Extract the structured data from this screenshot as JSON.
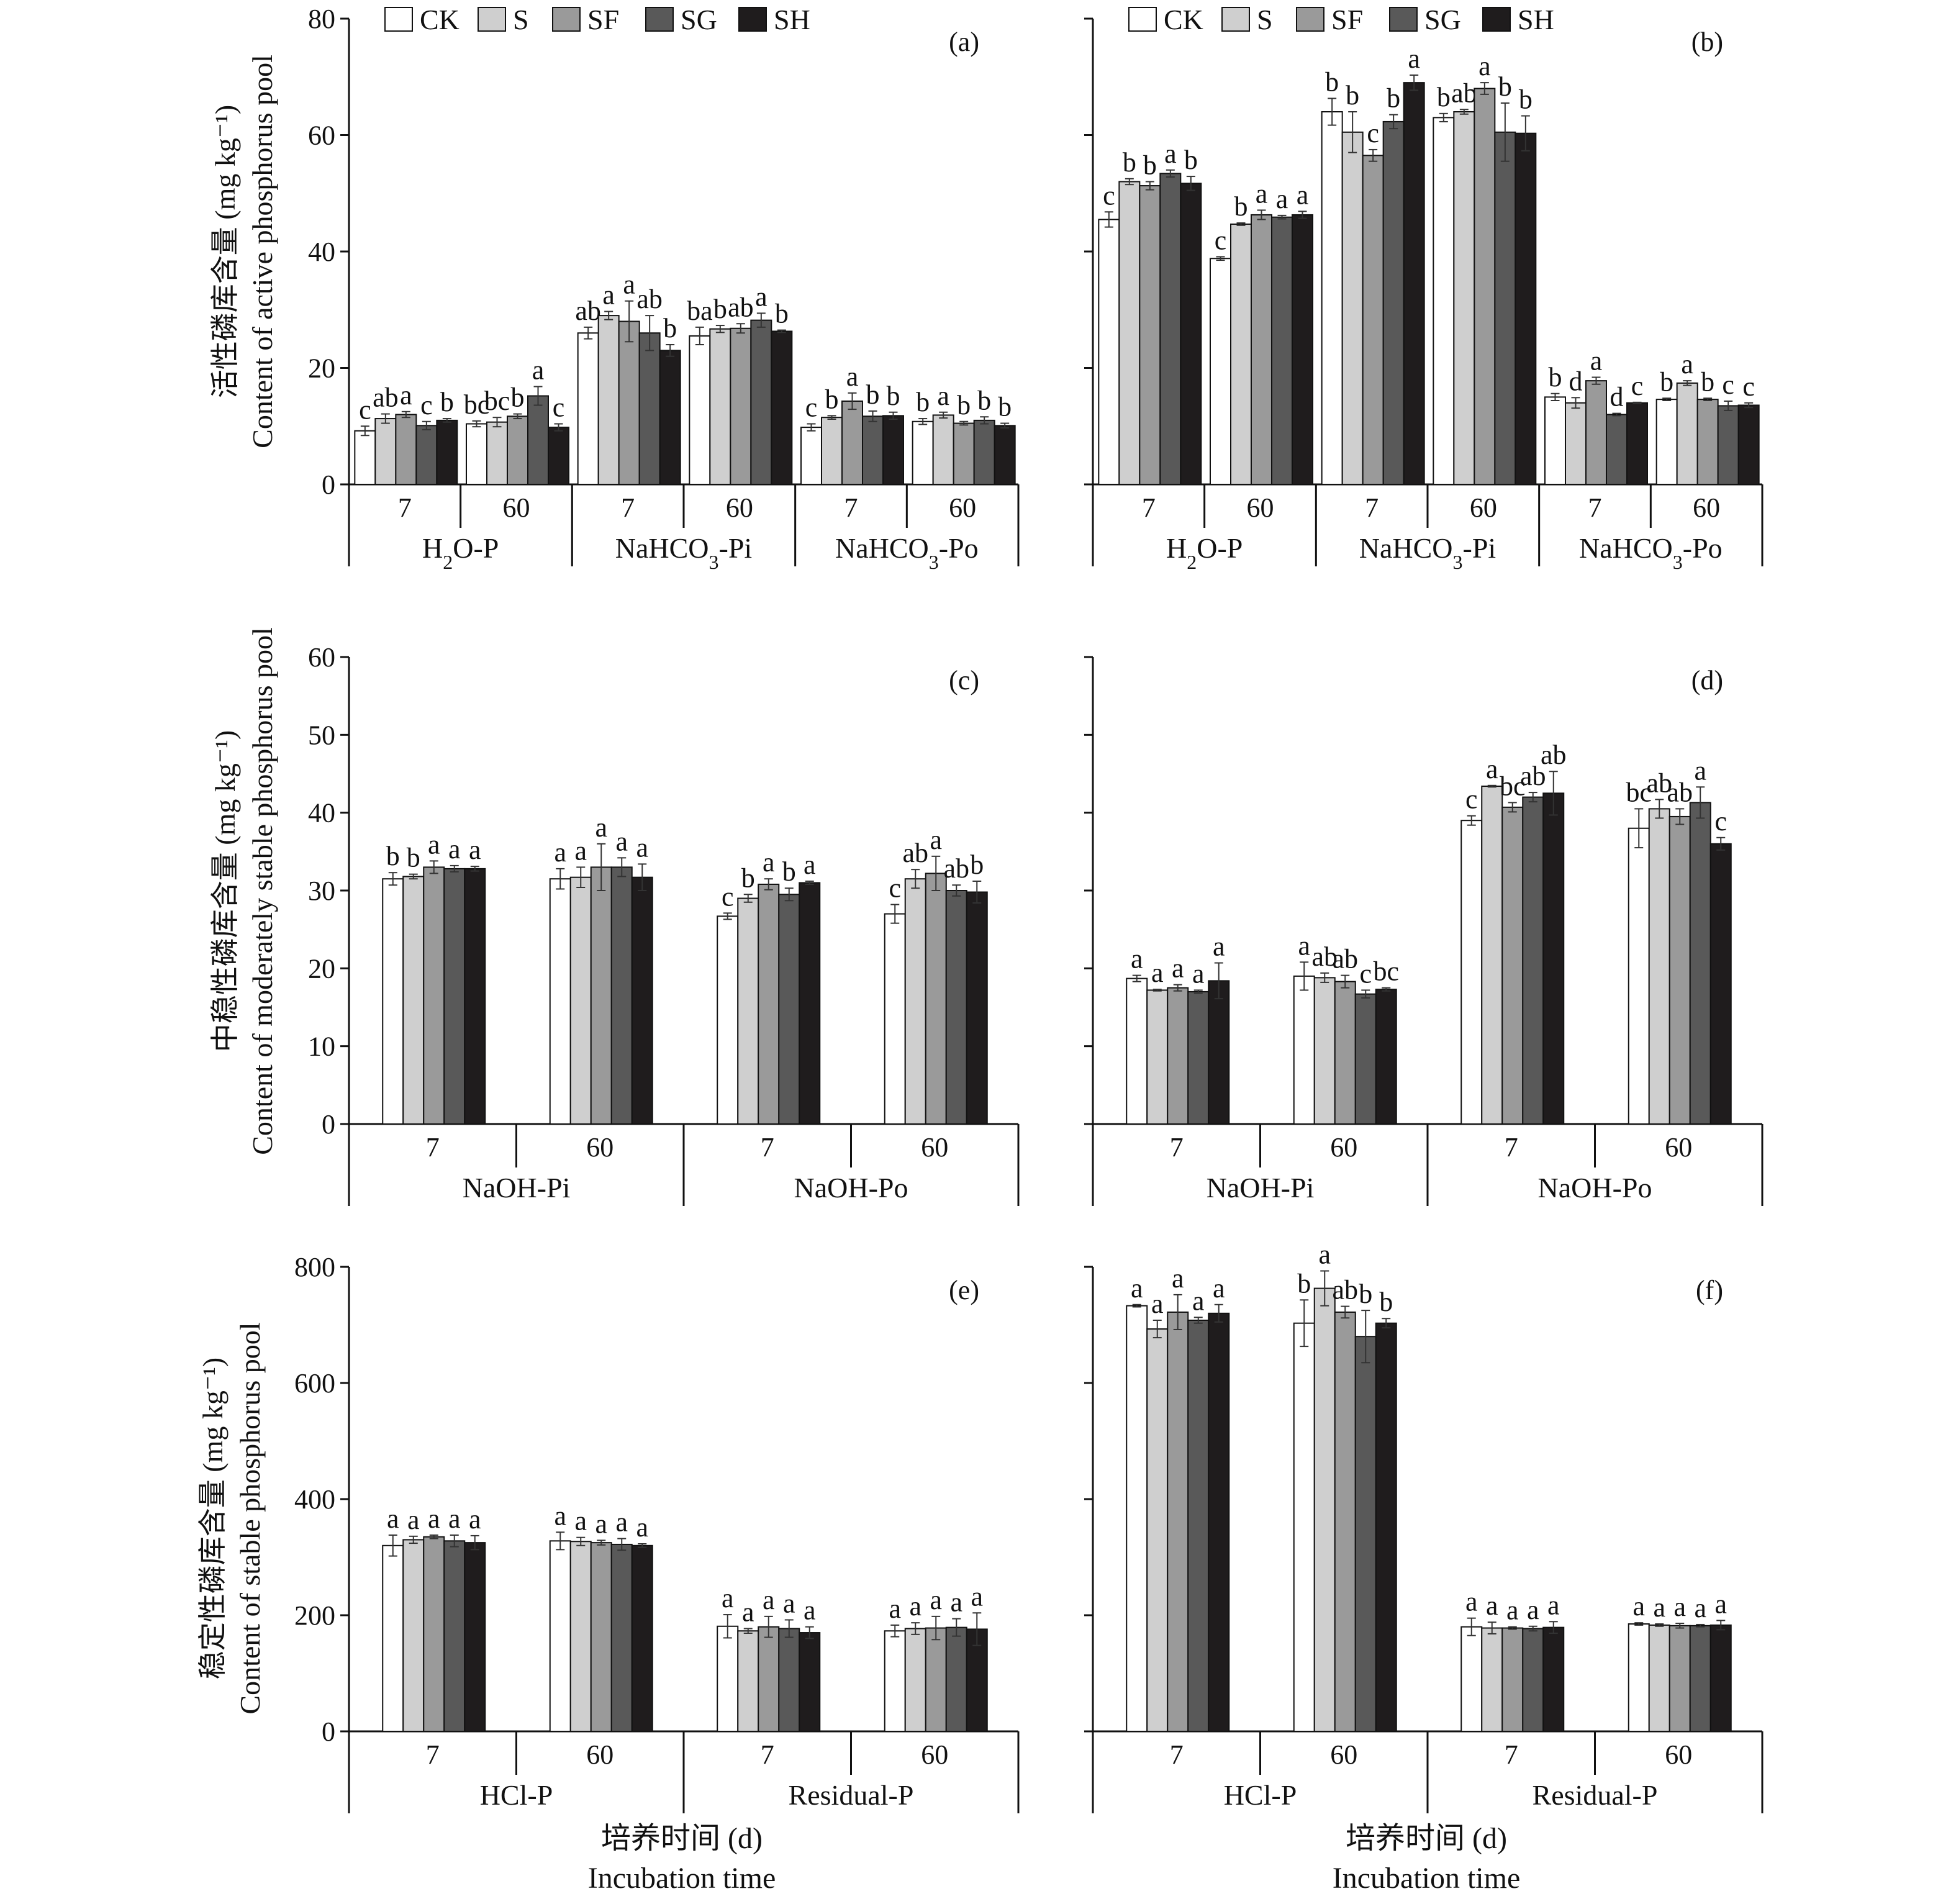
{
  "legend": {
    "items": [
      "CK",
      "S",
      "SF",
      "SG",
      "SH"
    ]
  },
  "colors": {
    "CK": "#ffffff",
    "S": "#cfcfcf",
    "SF": "#9a9a9a",
    "SG": "#595959",
    "SH": "#1f1c1d"
  },
  "row_ylabels": [
    {
      "cn": "活性磷库含量 (mg kg⁻¹)",
      "en": "Content of active phosphorus pool"
    },
    {
      "cn": "中稳性磷库含量 (mg kg⁻¹)",
      "en": "Content of moderately stable phosphorus pool"
    },
    {
      "cn": "稳定性磷库含量 (mg kg⁻¹)",
      "en": "Content of stable phosphorus pool"
    }
  ],
  "xlabel": {
    "cn": "培养时间 (d)",
    "en": "Incubation time"
  },
  "chart_data": [
    {
      "id": "a",
      "label": "(a)",
      "type": "bar",
      "ylim": [
        0,
        80
      ],
      "yticks": [
        0,
        20,
        40,
        60,
        80
      ],
      "show_tick_labels": true,
      "legend": true,
      "groups": [
        {
          "name": "H2O-P",
          "sub": "2",
          "days": [
            {
              "day": "7",
              "values": [
                9.2,
                11.3,
                12.0,
                10.1,
                11.0
              ],
              "err": [
                0.8,
                0.8,
                0.5,
                0.7,
                0.3
              ],
              "sig": [
                "c",
                "ab",
                "a",
                "c",
                "b"
              ]
            },
            {
              "day": "60",
              "values": [
                10.4,
                10.7,
                11.7,
                15.2,
                9.8
              ],
              "err": [
                0.5,
                0.8,
                0.4,
                1.6,
                0.6
              ],
              "sig": [
                "bc",
                "bc",
                "b",
                "a",
                "c"
              ]
            }
          ]
        },
        {
          "name": "NaHCO3-Pi",
          "sub": "3",
          "days": [
            {
              "day": "7",
              "values": [
                26.0,
                29.0,
                28.0,
                26.0,
                23.0
              ],
              "err": [
                1.0,
                0.7,
                3.5,
                3.0,
                1.0
              ],
              "sig": [
                "ab",
                "a",
                "a",
                "ab",
                "b"
              ]
            },
            {
              "day": "60",
              "values": [
                25.5,
                26.7,
                26.8,
                28.2,
                26.3
              ],
              "err": [
                1.5,
                0.6,
                0.8,
                1.2,
                0.2
              ],
              "sig": [
                "ba",
                "b",
                "ab",
                "a",
                "b"
              ]
            }
          ]
        },
        {
          "name": "NaHCO3-Po",
          "sub": "3",
          "days": [
            {
              "day": "7",
              "values": [
                9.8,
                11.5,
                14.3,
                11.7,
                11.8
              ],
              "err": [
                0.6,
                0.3,
                1.4,
                0.9,
                0.6
              ],
              "sig": [
                "c",
                "b",
                "a",
                "b",
                "b"
              ]
            },
            {
              "day": "60",
              "values": [
                10.8,
                11.9,
                10.5,
                11.0,
                10.1
              ],
              "err": [
                0.5,
                0.5,
                0.3,
                0.6,
                0.4
              ],
              "sig": [
                "b",
                "a",
                "b",
                "b",
                "b"
              ]
            }
          ]
        }
      ]
    },
    {
      "id": "b",
      "label": "(b)",
      "type": "bar",
      "ylim": [
        0,
        80
      ],
      "yticks": [
        0,
        20,
        40,
        60,
        80
      ],
      "show_tick_labels": false,
      "legend": true,
      "groups": [
        {
          "name": "H2O-P",
          "sub": "2",
          "days": [
            {
              "day": "7",
              "values": [
                45.5,
                52.0,
                51.3,
                53.4,
                51.7
              ],
              "err": [
                1.3,
                0.5,
                0.7,
                0.6,
                1.2
              ],
              "sig": [
                "c",
                "b",
                "b",
                "a",
                "b"
              ]
            },
            {
              "day": "60",
              "values": [
                38.8,
                44.7,
                46.3,
                45.9,
                46.3
              ],
              "err": [
                0.3,
                0.2,
                0.8,
                0.3,
                0.6
              ],
              "sig": [
                "c",
                "b",
                "a",
                "a",
                "a"
              ]
            }
          ]
        },
        {
          "name": "NaHCO3-Pi",
          "sub": "3",
          "days": [
            {
              "day": "7",
              "values": [
                64.0,
                60.5,
                56.5,
                62.3,
                69.0
              ],
              "err": [
                2.3,
                3.5,
                1.0,
                1.2,
                1.3
              ],
              "sig": [
                "b",
                "b",
                "c",
                "b",
                "a"
              ]
            },
            {
              "day": "60",
              "values": [
                63.0,
                64.0,
                68.0,
                60.5,
                60.3
              ],
              "err": [
                0.7,
                0.4,
                1.0,
                5.0,
                3.0
              ],
              "sig": [
                "b",
                "ab",
                "a",
                "b",
                "b"
              ]
            }
          ]
        },
        {
          "name": "NaHCO3-Po",
          "sub": "3",
          "days": [
            {
              "day": "7",
              "values": [
                15.0,
                14.0,
                17.8,
                12.0,
                14.0
              ],
              "err": [
                0.6,
                0.9,
                0.6,
                0.2,
                0.1
              ],
              "sig": [
                "b",
                "d",
                "a",
                "d",
                "c"
              ]
            },
            {
              "day": "60",
              "values": [
                14.6,
                17.4,
                14.6,
                13.5,
                13.6
              ],
              "err": [
                0.2,
                0.4,
                0.2,
                0.8,
                0.4
              ],
              "sig": [
                "b",
                "a",
                "b",
                "c",
                "c"
              ]
            }
          ]
        }
      ]
    },
    {
      "id": "c",
      "label": "(c)",
      "type": "bar",
      "ylim": [
        0,
        60
      ],
      "yticks": [
        0,
        10,
        20,
        30,
        40,
        50,
        60
      ],
      "show_tick_labels": true,
      "legend": false,
      "groups": [
        {
          "name": "NaOH-Pi",
          "sub": "",
          "days": [
            {
              "day": "7",
              "values": [
                31.5,
                31.8,
                33.0,
                32.8,
                32.8
              ],
              "err": [
                0.8,
                0.3,
                0.8,
                0.4,
                0.3
              ],
              "sig": [
                "b",
                "b",
                "a",
                "a",
                "a"
              ]
            },
            {
              "day": "60",
              "values": [
                31.5,
                31.7,
                33.0,
                33.0,
                31.7
              ],
              "err": [
                1.3,
                1.3,
                3.0,
                1.2,
                1.7
              ],
              "sig": [
                "a",
                "a",
                "a",
                "a",
                "a"
              ]
            }
          ]
        },
        {
          "name": "NaOH-Po",
          "sub": "",
          "days": [
            {
              "day": "7",
              "values": [
                26.7,
                29.0,
                30.8,
                29.5,
                31.0
              ],
              "err": [
                0.4,
                0.5,
                0.7,
                0.8,
                0.2
              ],
              "sig": [
                "c",
                "b",
                "a",
                "b",
                "a"
              ]
            },
            {
              "day": "60",
              "values": [
                27.0,
                31.5,
                32.2,
                30.0,
                29.8
              ],
              "err": [
                1.2,
                1.2,
                2.2,
                0.7,
                1.4
              ],
              "sig": [
                "c",
                "ab",
                "a",
                "ab",
                "b"
              ]
            }
          ]
        }
      ]
    },
    {
      "id": "d",
      "label": "(d)",
      "type": "bar",
      "ylim": [
        0,
        60
      ],
      "yticks": [
        0,
        10,
        20,
        30,
        40,
        50,
        60
      ],
      "show_tick_labels": false,
      "legend": false,
      "groups": [
        {
          "name": "NaOH-Pi",
          "sub": "",
          "days": [
            {
              "day": "7",
              "values": [
                18.7,
                17.2,
                17.5,
                17.0,
                18.4
              ],
              "err": [
                0.4,
                0.1,
                0.4,
                0.2,
                2.3
              ],
              "sig": [
                "a",
                "a",
                "a",
                "a",
                "a"
              ]
            },
            {
              "day": "60",
              "values": [
                19.0,
                18.8,
                18.3,
                16.7,
                17.3
              ],
              "err": [
                1.8,
                0.6,
                0.8,
                0.5,
                0.2
              ],
              "sig": [
                "a",
                "ab",
                "ab",
                "c",
                "bc"
              ]
            }
          ]
        },
        {
          "name": "NaOH-Po",
          "sub": "",
          "days": [
            {
              "day": "7",
              "values": [
                39.0,
                43.4,
                40.7,
                42.0,
                42.5
              ],
              "err": [
                0.6,
                0.1,
                0.6,
                0.6,
                2.8
              ],
              "sig": [
                "c",
                "a",
                "bc",
                "ab",
                "ab"
              ]
            },
            {
              "day": "60",
              "values": [
                38.0,
                40.5,
                39.5,
                41.3,
                36.0
              ],
              "err": [
                2.5,
                1.2,
                1.0,
                2.0,
                0.8
              ],
              "sig": [
                "bc",
                "ab",
                "ab",
                "a",
                "c"
              ]
            }
          ]
        }
      ]
    },
    {
      "id": "e",
      "label": "(e)",
      "type": "bar",
      "ylim": [
        0,
        800
      ],
      "yticks": [
        0,
        200,
        400,
        600,
        800
      ],
      "show_tick_labels": true,
      "legend": false,
      "groups": [
        {
          "name": "HCl-P",
          "sub": "",
          "days": [
            {
              "day": "7",
              "values": [
                320,
                330,
                335,
                328,
                325
              ],
              "err": [
                18,
                6,
                3,
                10,
                12
              ],
              "sig": [
                "a",
                "a",
                "a",
                "a",
                "a"
              ]
            },
            {
              "day": "60",
              "values": [
                328,
                327,
                325,
                322,
                320
              ],
              "err": [
                15,
                7,
                4,
                10,
                3
              ],
              "sig": [
                "a",
                "a",
                "a",
                "a",
                "a"
              ]
            }
          ]
        },
        {
          "name": "Residual-P",
          "sub": "",
          "days": [
            {
              "day": "7",
              "values": [
                181,
                173,
                180,
                177,
                170
              ],
              "err": [
                20,
                4,
                18,
                15,
                10
              ],
              "sig": [
                "a",
                "a",
                "a",
                "a",
                "a"
              ]
            },
            {
              "day": "60",
              "values": [
                173,
                177,
                178,
                179,
                176
              ],
              "err": [
                10,
                10,
                20,
                15,
                28
              ],
              "sig": [
                "a",
                "a",
                "a",
                "a",
                "a"
              ]
            }
          ]
        }
      ]
    },
    {
      "id": "f",
      "label": "(f)",
      "type": "bar",
      "ylim": [
        0,
        800
      ],
      "yticks": [
        0,
        200,
        400,
        600,
        800
      ],
      "show_tick_labels": false,
      "legend": false,
      "groups": [
        {
          "name": "HCl-P",
          "sub": "",
          "days": [
            {
              "day": "7",
              "values": [
                733,
                693,
                722,
                708,
                720
              ],
              "err": [
                2,
                15,
                30,
                5,
                15
              ],
              "sig": [
                "a",
                "a",
                "a",
                "a",
                "a"
              ]
            },
            {
              "day": "60",
              "values": [
                703,
                763,
                722,
                680,
                703
              ],
              "err": [
                40,
                30,
                10,
                45,
                8
              ],
              "sig": [
                "b",
                "a",
                "ab",
                "b",
                "b"
              ]
            }
          ]
        },
        {
          "name": "Residual-P",
          "sub": "",
          "days": [
            {
              "day": "7",
              "values": [
                180,
                178,
                178,
                177,
                179
              ],
              "err": [
                15,
                10,
                2,
                4,
                10
              ],
              "sig": [
                "a",
                "a",
                "a",
                "a",
                "a"
              ]
            },
            {
              "day": "60",
              "values": [
                185,
                183,
                182,
                182,
                183
              ],
              "err": [
                2,
                2,
                4,
                2,
                8
              ],
              "sig": [
                "a",
                "a",
                "a",
                "a",
                "a"
              ]
            }
          ]
        }
      ]
    }
  ]
}
